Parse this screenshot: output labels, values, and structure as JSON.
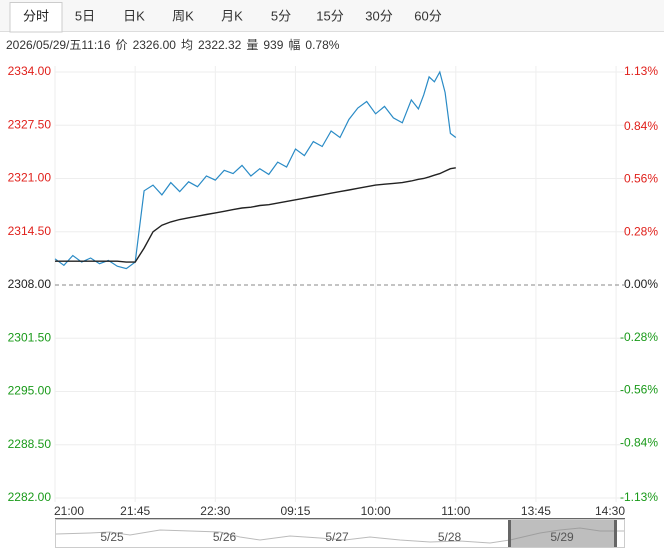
{
  "tabs": [
    "分时",
    "5日",
    "日K",
    "周K",
    "月K",
    "5分",
    "15分",
    "30分",
    "60分"
  ],
  "active_tab": 0,
  "info": {
    "time": "2026/05/29/五11:16",
    "items": [
      {
        "label": "价",
        "value": "2326.00"
      },
      {
        "label": "均",
        "value": "2322.32"
      },
      {
        "label": "量",
        "value": "939"
      },
      {
        "label": "幅",
        "value": "0.78%"
      }
    ]
  },
  "chart_data": {
    "type": "line",
    "x": [
      0,
      5,
      10,
      15,
      20,
      25,
      30,
      35,
      40,
      45,
      50,
      55,
      60,
      65,
      70,
      75,
      80,
      85,
      90,
      95,
      100,
      105,
      110,
      115,
      120,
      125,
      130,
      135,
      140,
      145,
      150,
      155,
      160,
      165,
      170,
      175,
      180,
      185,
      190,
      195,
      200,
      204,
      207,
      210,
      213,
      216,
      219,
      222,
      225
    ],
    "series": [
      {
        "color": "#2a8bc6",
        "values": [
          2311.2,
          2310.4,
          2311.6,
          2310.8,
          2311.3,
          2310.6,
          2311.0,
          2310.3,
          2310.0,
          2310.8,
          2319.5,
          2320.2,
          2319.0,
          2320.5,
          2319.4,
          2320.6,
          2320.0,
          2321.3,
          2320.8,
          2322.0,
          2321.6,
          2322.6,
          2321.3,
          2322.2,
          2321.5,
          2323.0,
          2322.4,
          2324.6,
          2323.8,
          2325.5,
          2324.9,
          2326.8,
          2326.0,
          2328.2,
          2329.6,
          2330.4,
          2328.9,
          2329.8,
          2328.4,
          2327.8,
          2330.6,
          2329.5,
          2331.2,
          2333.4,
          2332.8,
          2334.0,
          2331.5,
          2326.5,
          2326.0
        ]
      },
      {
        "color": "#222222",
        "values": [
          2310.9,
          2310.9,
          2310.9,
          2310.9,
          2310.9,
          2310.9,
          2310.9,
          2310.9,
          2310.8,
          2310.8,
          2312.5,
          2314.5,
          2315.3,
          2315.7,
          2316.0,
          2316.2,
          2316.4,
          2316.6,
          2316.8,
          2317.0,
          2317.2,
          2317.4,
          2317.5,
          2317.7,
          2317.8,
          2318.0,
          2318.2,
          2318.4,
          2318.6,
          2318.8,
          2319.0,
          2319.2,
          2319.4,
          2319.6,
          2319.8,
          2320.0,
          2320.2,
          2320.3,
          2320.4,
          2320.5,
          2320.7,
          2320.9,
          2321.0,
          2321.2,
          2321.4,
          2321.6,
          2321.9,
          2322.2,
          2322.3
        ]
      }
    ],
    "xlim": [
      0,
      320
    ],
    "xticks": [
      {
        "value": 0,
        "label": "21:00"
      },
      {
        "value": 45,
        "label": "21:45"
      },
      {
        "value": 90,
        "label": "22:30"
      },
      {
        "value": 135,
        "label": "09:15"
      },
      {
        "value": 180,
        "label": "10:00"
      },
      {
        "value": 225,
        "label": "11:00"
      },
      {
        "value": 270,
        "label": "13:45"
      },
      {
        "value": 315,
        "label": "14:30"
      }
    ],
    "ylim": [
      2282,
      2334
    ],
    "yticks": [
      {
        "value": 2334,
        "label": "2334.00"
      },
      {
        "value": 2327.5,
        "label": "2327.50"
      },
      {
        "value": 2321,
        "label": "2321.00"
      },
      {
        "value": 2314.5,
        "label": "2314.50"
      },
      {
        "value": 2308,
        "label": "2308.00"
      },
      {
        "value": 2301.5,
        "label": "2301.50"
      },
      {
        "value": 2295,
        "label": "2295.00"
      },
      {
        "value": 2288.5,
        "label": "2288.50"
      },
      {
        "value": 2282,
        "label": "2282.00"
      }
    ],
    "y2lim": [
      -1.13,
      1.13
    ],
    "y2ticks": [
      {
        "value": 1.13,
        "label": "1.13%"
      },
      {
        "value": 0.84,
        "label": "0.84%"
      },
      {
        "value": 0.56,
        "label": "0.56%"
      },
      {
        "value": 0.28,
        "label": "0.28%"
      },
      {
        "value": 0,
        "label": "0.00%"
      },
      {
        "value": -0.28,
        "label": "-0.28%"
      },
      {
        "value": -0.56,
        "label": "-0.56%"
      },
      {
        "value": -0.84,
        "label": "-0.84%"
      },
      {
        "value": -1.13,
        "label": "-1.13%"
      }
    ],
    "reference_line": 2308,
    "grid": true,
    "up_color": "#e0201b",
    "down_color": "#1a9a1a",
    "neutral_color": "#222222"
  },
  "navigator": {
    "dates": [
      "5/25",
      "5/26",
      "5/27",
      "5/28",
      "5/29"
    ]
  }
}
